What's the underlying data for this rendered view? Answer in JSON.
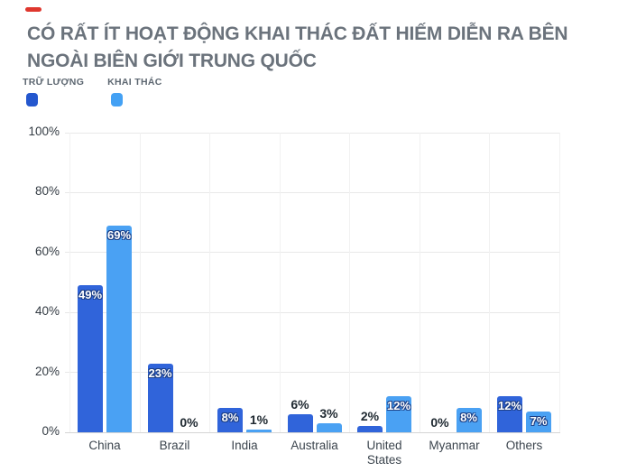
{
  "title": {
    "line1": "CÓ RẤT ÍT HOẠT ĐỘNG KHAI THÁC ĐẤT HIẾM DIỄN RA BÊN",
    "line2": "NGOÀI BIÊN GIỚI TRUNG QUỐC"
  },
  "legend": {
    "items": [
      {
        "label": "TRỮ LƯỢNG",
        "color": "#2457ce"
      },
      {
        "label": "KHAI THÁC",
        "color": "#44a1f4"
      }
    ]
  },
  "colors": {
    "accent_dash": "#df372e",
    "title_text": "#6b737c",
    "legend_text": "#5d6771",
    "reserves_bar": "#3064da",
    "mining_bar": "#4aa1f3",
    "grid_h": "#e8e8e8",
    "grid_v": "#f1f1f1",
    "baseline": "#d5d5d5",
    "y_tick_text": "#333b43",
    "x_label_text": "#3b444d",
    "outside_value_text": "#202a32"
  },
  "chart_data": {
    "type": "bar",
    "title": "CÓ RẤT ÍT HOẠT ĐỘNG KHAI THÁC ĐẤT HIẾM DIỄN RA BÊN NGOÀI BIÊN GIỚI TRUNG QUỐC",
    "categories": [
      "China",
      "Brazil",
      "India",
      "Australia",
      "United States",
      "Myanmar",
      "Others"
    ],
    "series": [
      {
        "name": "TRỮ LƯỢNG",
        "color": "#3064da",
        "values": [
          49,
          23,
          8,
          6,
          2,
          0,
          12
        ],
        "labels": [
          "49%",
          "23%",
          "8%",
          "6%",
          "2%",
          "0%",
          "12%"
        ]
      },
      {
        "name": "KHAI THÁC",
        "color": "#4aa1f3",
        "values": [
          69,
          0,
          1,
          3,
          12,
          8,
          7
        ],
        "labels": [
          "69%",
          "0%",
          "1%",
          "3%",
          "12%",
          "8%",
          "7%"
        ]
      }
    ],
    "y_ticks": [
      "0%",
      "20%",
      "40%",
      "60%",
      "80%",
      "100%"
    ],
    "y_tick_values": [
      0,
      20,
      40,
      60,
      80,
      100
    ],
    "ylim": [
      0,
      100
    ],
    "unit": "%",
    "grid": true,
    "legend_position": "top-left"
  }
}
